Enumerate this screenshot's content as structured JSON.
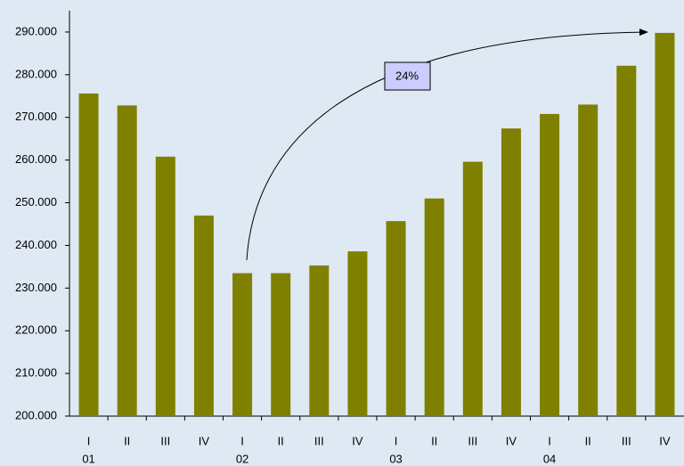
{
  "chart_data": {
    "type": "bar",
    "categories": [
      "I",
      "II",
      "III",
      "IV",
      "I",
      "II",
      "III",
      "IV",
      "I",
      "II",
      "III",
      "IV",
      "I",
      "II",
      "III",
      "IV"
    ],
    "years": [
      "01",
      null,
      null,
      null,
      "02",
      null,
      null,
      null,
      "03",
      null,
      null,
      null,
      "04",
      null,
      null,
      null
    ],
    "values": [
      275600,
      272800,
      260800,
      247000,
      233500,
      233500,
      235300,
      238600,
      245700,
      251000,
      259600,
      267400,
      270800,
      273000,
      282100,
      289800
    ],
    "color": "#808000",
    "ylim": [
      200000,
      295000
    ],
    "yticks": [
      {
        "value": 200000,
        "label": "200.000"
      },
      {
        "value": 210000,
        "label": "210.000"
      },
      {
        "value": 220000,
        "label": "220.000"
      },
      {
        "value": 230000,
        "label": "230.000"
      },
      {
        "value": 240000,
        "label": "240.000"
      },
      {
        "value": 250000,
        "label": "250.000"
      },
      {
        "value": 260000,
        "label": "260.000"
      },
      {
        "value": 270000,
        "label": "270.000"
      },
      {
        "value": 280000,
        "label": "280.000"
      },
      {
        "value": 290000,
        "label": "290.000"
      }
    ],
    "annotation": "24%",
    "grid": false
  }
}
